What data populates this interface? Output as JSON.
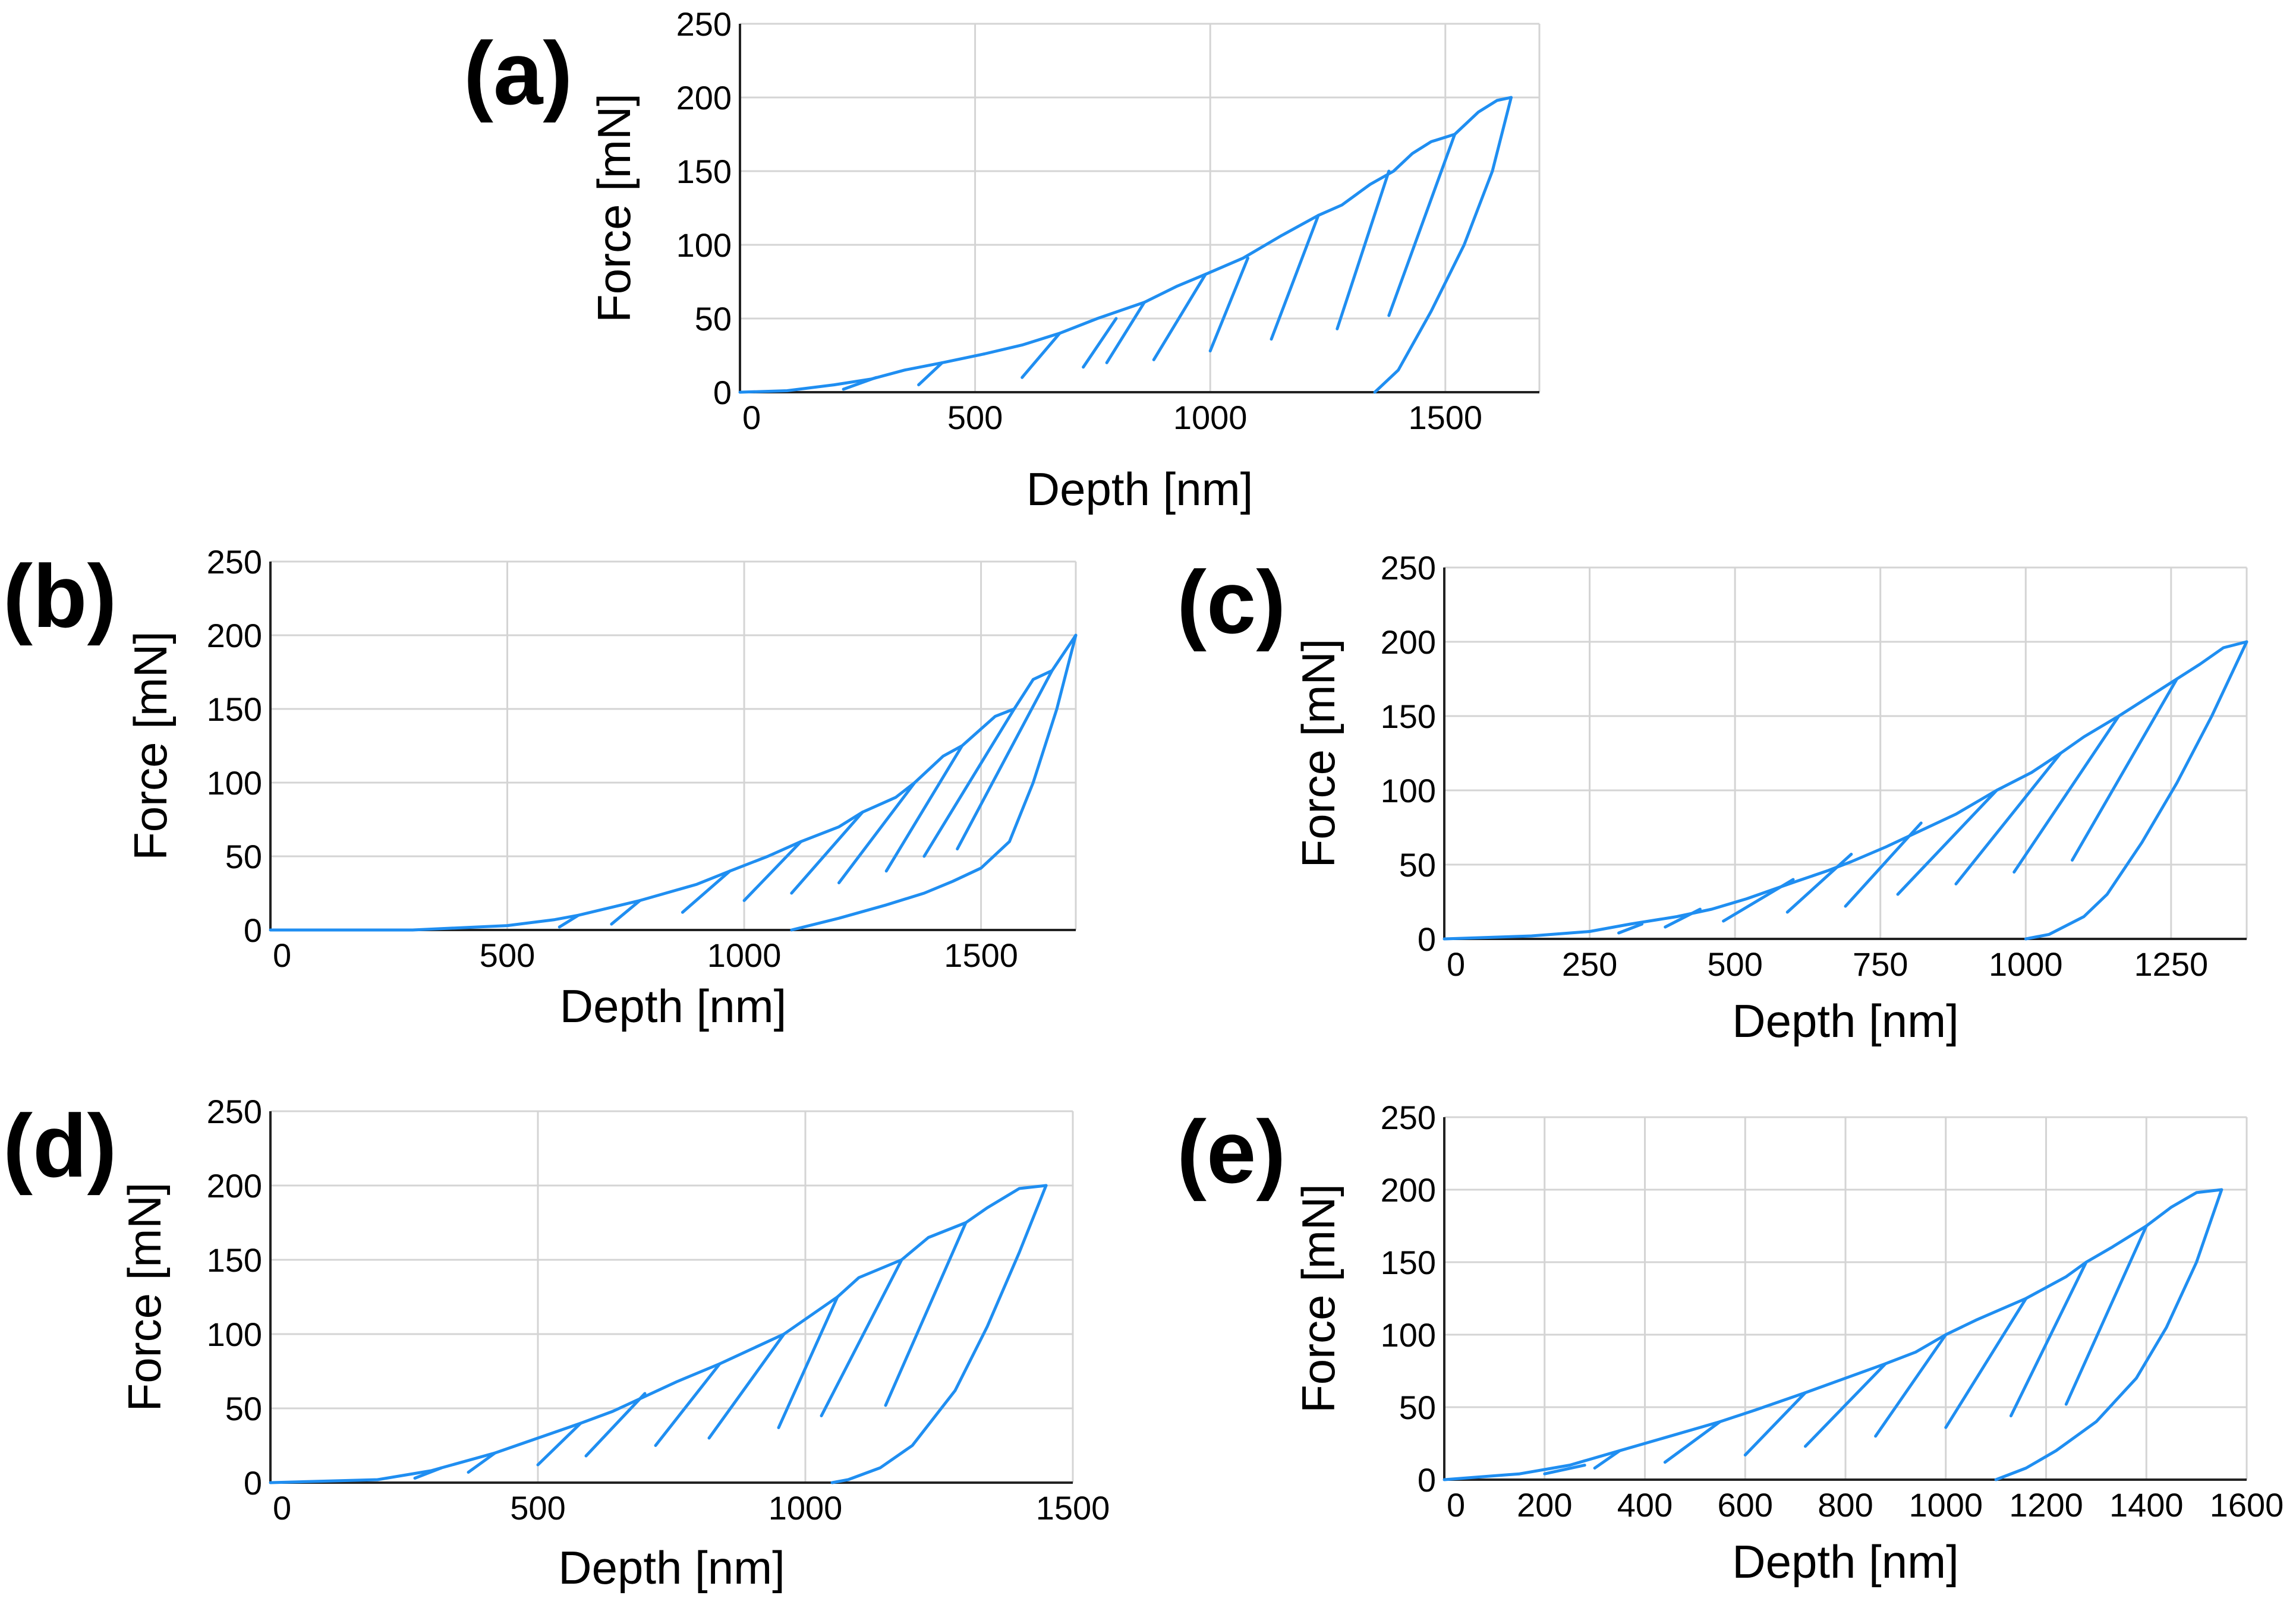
{
  "style": {
    "curve_color": "#1f8ef1",
    "grid_color": "#d4d4d4",
    "axis_color": "#222222",
    "background": "#ffffff"
  },
  "chart_data": [
    {
      "panel": "(a)",
      "type": "line",
      "xlabel": "Depth [nm]",
      "ylabel": "Force [mN]",
      "xlim": [
        0,
        1700
      ],
      "ylim": [
        0,
        250
      ],
      "xticks": [
        0,
        500,
        1000,
        1500
      ],
      "yticks": [
        0,
        50,
        100,
        150,
        200,
        250
      ],
      "grid": true,
      "series": [
        {
          "x": [
            0,
            100,
            200,
            280,
            350,
            430,
            520,
            600,
            680,
            760,
            860,
            930,
            990,
            1070,
            1150,
            1230,
            1280,
            1340,
            1390,
            1430,
            1470,
            1520,
            1570,
            1610,
            1640
          ],
          "y": [
            0,
            1,
            5,
            9,
            15,
            20,
            26,
            32,
            40,
            50,
            61,
            72,
            80,
            91,
            106,
            120,
            127,
            141,
            150,
            162,
            170,
            175,
            190,
            198,
            200
          ]
        },
        {
          "x": [
            1640,
            1600,
            1540,
            1470,
            1400,
            1360,
            1350
          ],
          "y": [
            200,
            150,
            100,
            55,
            15,
            3,
            0
          ]
        },
        {
          "x": [
            600,
            680
          ],
          "y": [
            10,
            40
          ]
        },
        {
          "x": [
            730,
            800
          ],
          "y": [
            17,
            50
          ]
        },
        {
          "x": [
            780,
            860
          ],
          "y": [
            20,
            61
          ]
        },
        {
          "x": [
            880,
            990
          ],
          "y": [
            22,
            80
          ]
        },
        {
          "x": [
            1000,
            1080
          ],
          "y": [
            28,
            91
          ]
        },
        {
          "x": [
            1130,
            1230
          ],
          "y": [
            36,
            120
          ]
        },
        {
          "x": [
            1270,
            1380
          ],
          "y": [
            43,
            150
          ]
        },
        {
          "x": [
            1380,
            1520
          ],
          "y": [
            52,
            175
          ]
        },
        {
          "x": [
            380,
            430
          ],
          "y": [
            5,
            20
          ]
        },
        {
          "x": [
            220,
            290
          ],
          "y": [
            2,
            10
          ]
        }
      ]
    },
    {
      "panel": "(b)",
      "type": "line",
      "xlabel": "Depth [nm]",
      "ylabel": "Force [mN]",
      "xlim": [
        0,
        1700
      ],
      "ylim": [
        0,
        250
      ],
      "xticks": [
        0,
        500,
        1000,
        1500
      ],
      "yticks": [
        0,
        50,
        100,
        150,
        200,
        250
      ],
      "grid": true,
      "series": [
        {
          "x": [
            0,
            300,
            500,
            600,
            650,
            780,
            900,
            970,
            1050,
            1120,
            1200,
            1250,
            1320,
            1360,
            1420,
            1460,
            1530,
            1570,
            1610,
            1650,
            1700
          ],
          "y": [
            0,
            0,
            3,
            7,
            10,
            20,
            31,
            40,
            50,
            60,
            70,
            80,
            90,
            100,
            118,
            125,
            145,
            150,
            170,
            176,
            200
          ]
        },
        {
          "x": [
            1700,
            1660,
            1610,
            1560,
            1500,
            1440,
            1380,
            1300,
            1200,
            1100
          ],
          "y": [
            200,
            150,
            100,
            60,
            42,
            33,
            25,
            17,
            8,
            0
          ]
        },
        {
          "x": [
            610,
            650
          ],
          "y": [
            2,
            10
          ]
        },
        {
          "x": [
            720,
            780
          ],
          "y": [
            4,
            20
          ]
        },
        {
          "x": [
            870,
            970
          ],
          "y": [
            12,
            40
          ]
        },
        {
          "x": [
            1000,
            1120
          ],
          "y": [
            20,
            60
          ]
        },
        {
          "x": [
            1100,
            1250
          ],
          "y": [
            25,
            80
          ]
        },
        {
          "x": [
            1200,
            1360
          ],
          "y": [
            32,
            100
          ]
        },
        {
          "x": [
            1300,
            1460
          ],
          "y": [
            40,
            125
          ]
        },
        {
          "x": [
            1380,
            1570
          ],
          "y": [
            50,
            150
          ]
        },
        {
          "x": [
            1450,
            1650
          ],
          "y": [
            55,
            176
          ]
        }
      ]
    },
    {
      "panel": "(c)",
      "type": "line",
      "xlabel": "Depth [nm]",
      "ylabel": "Force [mN]",
      "xlim": [
        0,
        1380
      ],
      "ylim": [
        0,
        250
      ],
      "xticks": [
        0,
        250,
        500,
        750,
        1000,
        1250
      ],
      "yticks": [
        0,
        50,
        100,
        150,
        200,
        250
      ],
      "grid": true,
      "series": [
        {
          "x": [
            0,
            150,
            250,
            320,
            400,
            460,
            520,
            600,
            660,
            700,
            760,
            820,
            880,
            950,
            1010,
            1060,
            1100,
            1160,
            1220,
            1260,
            1300,
            1340,
            1380
          ],
          "y": [
            0,
            2,
            5,
            10,
            15,
            20,
            27,
            38,
            46,
            52,
            62,
            73,
            84,
            100,
            112,
            125,
            136,
            150,
            165,
            175,
            185,
            196,
            200
          ]
        },
        {
          "x": [
            1380,
            1320,
            1260,
            1200,
            1140,
            1100,
            1040,
            1000
          ],
          "y": [
            200,
            150,
            105,
            65,
            30,
            15,
            3,
            0
          ]
        },
        {
          "x": [
            480,
            600
          ],
          "y": [
            12,
            40
          ]
        },
        {
          "x": [
            590,
            700
          ],
          "y": [
            18,
            57
          ]
        },
        {
          "x": [
            690,
            820
          ],
          "y": [
            22,
            78
          ]
        },
        {
          "x": [
            780,
            950
          ],
          "y": [
            30,
            100
          ]
        },
        {
          "x": [
            880,
            1060
          ],
          "y": [
            37,
            125
          ]
        },
        {
          "x": [
            980,
            1160
          ],
          "y": [
            45,
            150
          ]
        },
        {
          "x": [
            1080,
            1260
          ],
          "y": [
            53,
            175
          ]
        },
        {
          "x": [
            300,
            340
          ],
          "y": [
            4,
            10
          ]
        },
        {
          "x": [
            380,
            440
          ],
          "y": [
            8,
            20
          ]
        }
      ]
    },
    {
      "panel": "(d)",
      "type": "line",
      "xlabel": "Depth [nm]",
      "ylabel": "Force [mN]",
      "xlim": [
        0,
        1500
      ],
      "ylim": [
        0,
        250
      ],
      "xticks": [
        0,
        500,
        1000,
        1500
      ],
      "yticks": [
        0,
        50,
        100,
        150,
        200,
        250
      ],
      "grid": true,
      "series": [
        {
          "x": [
            0,
            200,
            300,
            420,
            500,
            580,
            640,
            700,
            760,
            840,
            900,
            960,
            1000,
            1060,
            1100,
            1180,
            1230,
            1300,
            1340,
            1400,
            1450
          ],
          "y": [
            0,
            2,
            8,
            20,
            30,
            40,
            48,
            58,
            68,
            80,
            90,
            100,
            110,
            125,
            138,
            150,
            165,
            175,
            185,
            198,
            200
          ]
        },
        {
          "x": [
            1450,
            1400,
            1340,
            1280,
            1200,
            1140,
            1080,
            1050
          ],
          "y": [
            200,
            155,
            105,
            62,
            25,
            10,
            2,
            0
          ]
        },
        {
          "x": [
            500,
            580
          ],
          "y": [
            12,
            40
          ]
        },
        {
          "x": [
            590,
            700
          ],
          "y": [
            18,
            60
          ]
        },
        {
          "x": [
            720,
            840
          ],
          "y": [
            25,
            80
          ]
        },
        {
          "x": [
            820,
            960
          ],
          "y": [
            30,
            100
          ]
        },
        {
          "x": [
            950,
            1060
          ],
          "y": [
            37,
            125
          ]
        },
        {
          "x": [
            1030,
            1180
          ],
          "y": [
            45,
            150
          ]
        },
        {
          "x": [
            1150,
            1300
          ],
          "y": [
            52,
            175
          ]
        },
        {
          "x": [
            270,
            320
          ],
          "y": [
            3,
            10
          ]
        },
        {
          "x": [
            370,
            420
          ],
          "y": [
            7,
            20
          ]
        }
      ]
    },
    {
      "panel": "(e)",
      "type": "line",
      "xlabel": "Depth [nm]",
      "ylabel": "Force [mN]",
      "xlim": [
        0,
        1600
      ],
      "ylim": [
        0,
        250
      ],
      "xticks": [
        0,
        200,
        400,
        600,
        800,
        1000,
        1200,
        1400,
        1600
      ],
      "yticks": [
        0,
        50,
        100,
        150,
        200,
        250
      ],
      "grid": true,
      "series": [
        {
          "x": [
            0,
            150,
            250,
            350,
            450,
            550,
            620,
            720,
            800,
            880,
            940,
            1000,
            1060,
            1160,
            1240,
            1280,
            1330,
            1400,
            1450,
            1500,
            1550
          ],
          "y": [
            0,
            4,
            10,
            20,
            30,
            40,
            48,
            60,
            70,
            80,
            88,
            100,
            110,
            125,
            140,
            150,
            160,
            175,
            188,
            198,
            200
          ]
        },
        {
          "x": [
            1550,
            1500,
            1440,
            1380,
            1300,
            1220,
            1160,
            1100
          ],
          "y": [
            200,
            150,
            105,
            70,
            40,
            20,
            8,
            0
          ]
        },
        {
          "x": [
            440,
            550
          ],
          "y": [
            12,
            40
          ]
        },
        {
          "x": [
            600,
            720
          ],
          "y": [
            17,
            60
          ]
        },
        {
          "x": [
            720,
            880
          ],
          "y": [
            23,
            80
          ]
        },
        {
          "x": [
            860,
            1000
          ],
          "y": [
            30,
            100
          ]
        },
        {
          "x": [
            1000,
            1160
          ],
          "y": [
            36,
            125
          ]
        },
        {
          "x": [
            1130,
            1280
          ],
          "y": [
            44,
            150
          ]
        },
        {
          "x": [
            1240,
            1400
          ],
          "y": [
            52,
            175
          ]
        },
        {
          "x": [
            200,
            280
          ],
          "y": [
            4,
            10
          ]
        },
        {
          "x": [
            300,
            350
          ],
          "y": [
            8,
            20
          ]
        }
      ]
    }
  ]
}
